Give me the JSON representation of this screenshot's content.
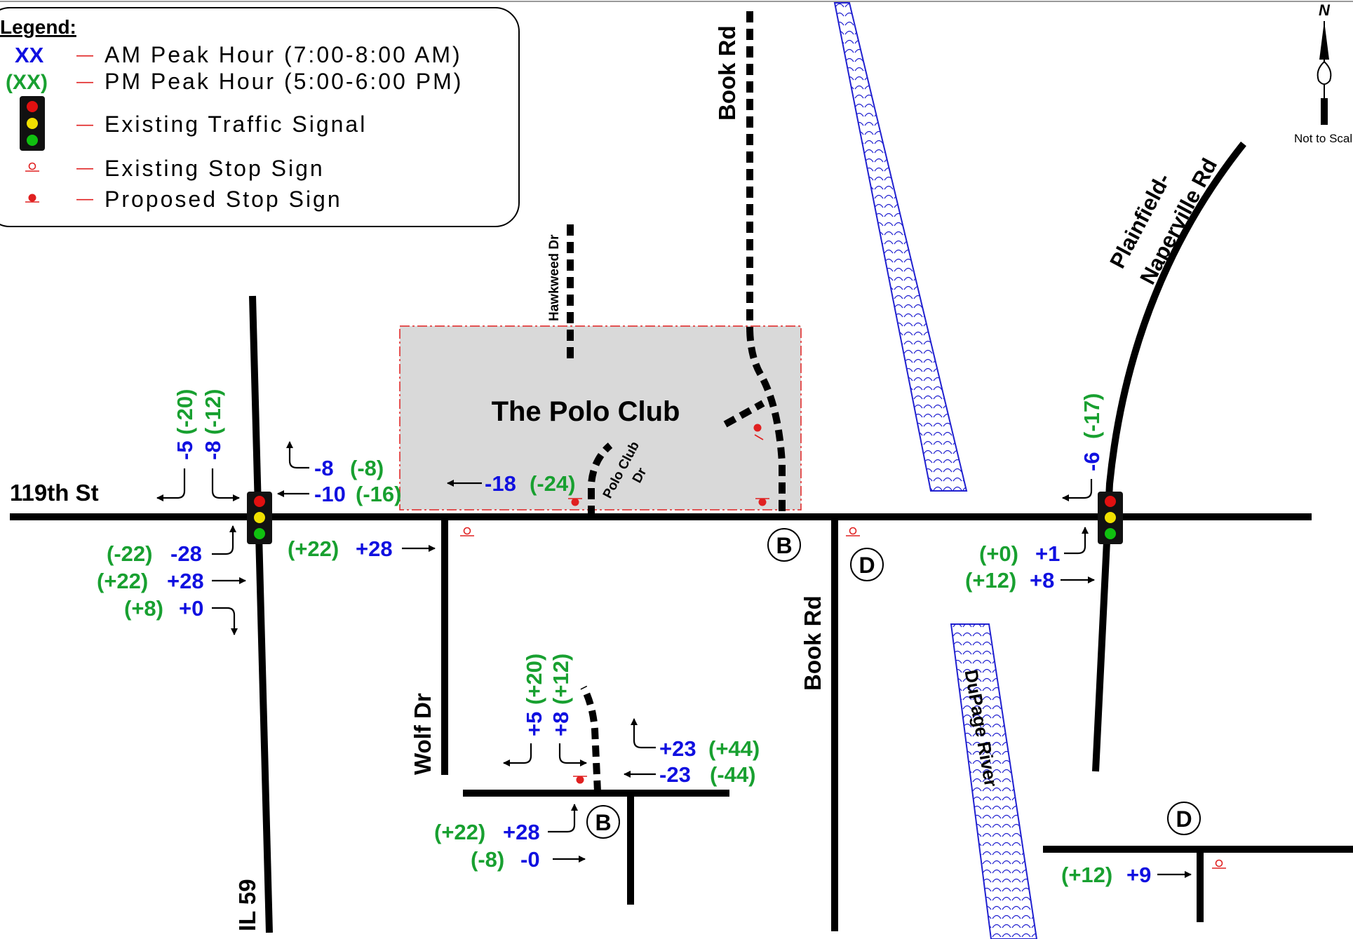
{
  "legend": {
    "title": "Legend:",
    "am_symbol": "XX",
    "am_label": "AM Peak Hour (7:00-8:00 AM)",
    "pm_symbol": "(XX)",
    "pm_label": "PM Peak Hour (5:00-6:00 PM)",
    "signal_label": "Existing Traffic Signal",
    "existing_stop_label": "Existing Stop Sign",
    "proposed_stop_label": "Proposed Stop Sign",
    "dash": "—"
  },
  "north": {
    "letter": "N",
    "scale_note": "Not to Scale"
  },
  "roads": {
    "st119": "119th St",
    "il59": "IL 59",
    "book_north": "Book Rd",
    "book_south": "Book Rd",
    "hawkweed": "Hawkweed Dr",
    "polo_club_dr_1": "Polo Club",
    "polo_club_dr_2": "Dr",
    "wolf": "Wolf Dr",
    "plainfield_1": "Plainfield-",
    "plainfield_2": "Naperville Rd",
    "river": "DuPage River"
  },
  "site": {
    "name": "The Polo Club"
  },
  "markers": {
    "b1": "B",
    "b2": "B",
    "d1": "D",
    "d2": "D"
  },
  "colors": {
    "am": "#1010e0",
    "pm": "#18a030",
    "stop_sign": "#e02020",
    "river": "#2020d0"
  },
  "volumes": {
    "il59": {
      "sb_left_am": "-5",
      "sb_left_pm": "(-20)",
      "sb_thru_am": "-8",
      "sb_thru_pm": "(-12)",
      "wb_left_am": "-8",
      "wb_left_pm": "(-8)",
      "wb_thru_am": "-10",
      "wb_thru_pm": "(-16)",
      "eb_left_am": "-28",
      "eb_left_pm": "(-22)",
      "eb_thru_am": "+28",
      "eb_thru_pm": "(+22)",
      "eb_right_am": "+0",
      "eb_right_pm": "(+8)"
    },
    "mid": {
      "eb_am": "+28",
      "eb_pm": "(+22)",
      "wb_am": "-18",
      "wb_pm": "(-24)"
    },
    "plainfield": {
      "sb_am": "-6",
      "sb_pm": "(-17)",
      "eb_left_am": "+1",
      "eb_left_pm": "(+0)",
      "eb_thru_am": "+8",
      "eb_thru_pm": "(+12)"
    },
    "site_b": {
      "sb_left_am": "+5",
      "sb_left_pm": "(+20)",
      "sb_right_am": "+8",
      "sb_right_pm": "(+12)",
      "wb_right_am": "+23",
      "wb_right_pm": "(+44)",
      "wb_thru_am": "-23",
      "wb_thru_pm": "(-44)",
      "eb_left_am": "+28",
      "eb_left_pm": "(+22)",
      "eb_thru_am": "-0",
      "eb_thru_pm": "(-8)"
    },
    "site_d": {
      "eb_am": "+9",
      "eb_pm": "(+12)"
    }
  }
}
